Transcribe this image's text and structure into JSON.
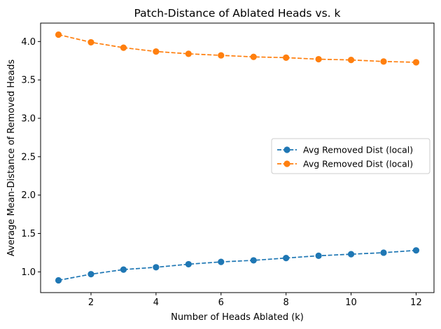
{
  "chart_data": {
    "type": "line",
    "title": "Patch-Distance of Ablated Heads vs. k",
    "xlabel": "Number of Heads Ablated (k)",
    "ylabel": "Average Mean-Distance of Removed Heads",
    "x": [
      1,
      2,
      3,
      4,
      5,
      6,
      7,
      8,
      9,
      10,
      11,
      12
    ],
    "xlim": [
      0.45,
      12.55
    ],
    "ylim": [
      0.73,
      4.24
    ],
    "xticks": [
      2,
      4,
      6,
      8,
      10,
      12
    ],
    "yticks": [
      1.0,
      1.5,
      2.0,
      2.5,
      3.0,
      3.5,
      4.0
    ],
    "grid": false,
    "legend_position": "center-right",
    "series": [
      {
        "name": "Avg Removed Dist (local)",
        "color": "#1f77b4",
        "line_style": "dashed",
        "marker": "circle",
        "values": [
          0.89,
          0.97,
          1.03,
          1.06,
          1.1,
          1.13,
          1.15,
          1.18,
          1.21,
          1.23,
          1.25,
          1.28
        ]
      },
      {
        "name": "Avg Removed Dist (local)",
        "color": "#ff7f0e",
        "line_style": "dashed",
        "marker": "circle",
        "values": [
          4.09,
          3.99,
          3.92,
          3.87,
          3.84,
          3.82,
          3.8,
          3.79,
          3.77,
          3.76,
          3.74,
          3.73
        ]
      }
    ]
  }
}
